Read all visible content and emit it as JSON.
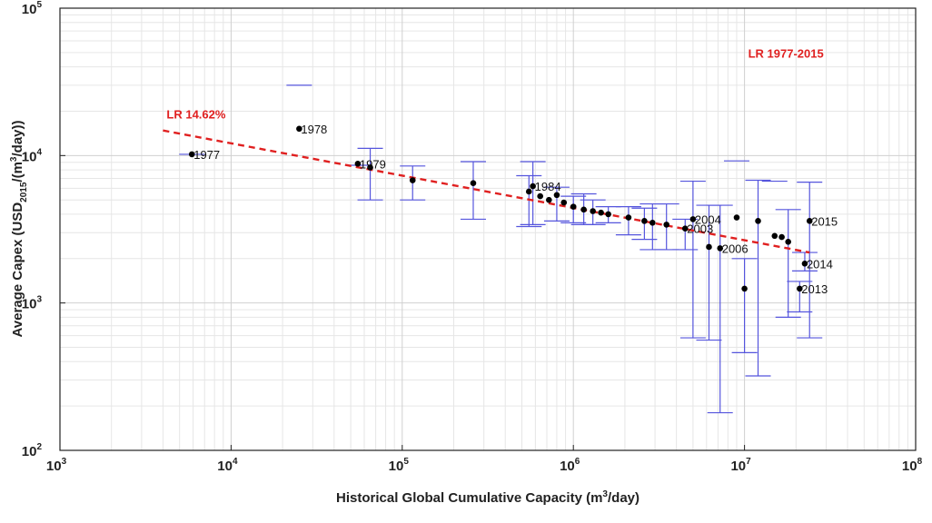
{
  "chart_data": {
    "type": "scatter",
    "title": "",
    "xlabel": {
      "pre": "Historical Global Cumulative Capacity (m",
      "sup": "3",
      "post": "/day)"
    },
    "ylabel": {
      "pre": "Average Capex (USD",
      "sub": "2015",
      "mid": "/(m",
      "sup": "3",
      "post": "/day))"
    },
    "x_scale": "log",
    "y_scale": "log",
    "xlim": [
      1000,
      100000000
    ],
    "ylim": [
      100,
      100000
    ],
    "grid": true,
    "x_ticks": [
      {
        "base": "10",
        "exp": "3"
      },
      {
        "base": "10",
        "exp": "4"
      },
      {
        "base": "10",
        "exp": "5"
      },
      {
        "base": "10",
        "exp": "6"
      },
      {
        "base": "10",
        "exp": "7"
      },
      {
        "base": "10",
        "exp": "8"
      }
    ],
    "y_ticks": [
      {
        "base": "10",
        "exp": "2"
      },
      {
        "base": "10",
        "exp": "3"
      },
      {
        "base": "10",
        "exp": "4"
      },
      {
        "base": "10",
        "exp": "5"
      }
    ],
    "colors": {
      "points": "#000000",
      "error_bars": "#5555dd",
      "fit_line": "#e02020",
      "annotation": "#e02020"
    },
    "annotations": [
      {
        "text": "LR 14.62%",
        "x": 4200,
        "y": 17800
      },
      {
        "text": "LR 1977-2015",
        "x": 10500000,
        "y": 46000
      }
    ],
    "fit_line": {
      "x": [
        4000,
        24000000
      ],
      "y": [
        14800,
        2200
      ]
    },
    "points": [
      {
        "x": 5900,
        "y": 10200,
        "label": "1977"
      },
      {
        "x": 25000,
        "y": 15200,
        "label": "1978"
      },
      {
        "x": 55000,
        "y": 8800,
        "label": "1979"
      },
      {
        "x": 65000,
        "y": 8300
      },
      {
        "x": 115000,
        "y": 6800
      },
      {
        "x": 260000,
        "y": 6500
      },
      {
        "x": 550000,
        "y": 5700
      },
      {
        "x": 580000,
        "y": 6200,
        "label": "1984"
      },
      {
        "x": 640000,
        "y": 5300
      },
      {
        "x": 720000,
        "y": 5000
      },
      {
        "x": 800000,
        "y": 5400
      },
      {
        "x": 880000,
        "y": 4800
      },
      {
        "x": 1000000,
        "y": 4500
      },
      {
        "x": 1150000,
        "y": 4300
      },
      {
        "x": 1300000,
        "y": 4200
      },
      {
        "x": 1450000,
        "y": 4100
      },
      {
        "x": 1600000,
        "y": 4000
      },
      {
        "x": 2100000,
        "y": 3800
      },
      {
        "x": 2600000,
        "y": 3600
      },
      {
        "x": 2900000,
        "y": 3500
      },
      {
        "x": 3500000,
        "y": 3400
      },
      {
        "x": 4500000,
        "y": 3200,
        "label": "2003"
      },
      {
        "x": 5000000,
        "y": 3700,
        "label": "2004"
      },
      {
        "x": 6200000,
        "y": 2400
      },
      {
        "x": 7200000,
        "y": 2350,
        "label": "2006"
      },
      {
        "x": 9000000,
        "y": 3800
      },
      {
        "x": 10000000,
        "y": 1250
      },
      {
        "x": 12000000,
        "y": 3600
      },
      {
        "x": 15000000,
        "y": 2850
      },
      {
        "x": 16500000,
        "y": 2800
      },
      {
        "x": 18000000,
        "y": 2600
      },
      {
        "x": 21000000,
        "y": 1250,
        "label": "2013"
      },
      {
        "x": 22500000,
        "y": 1850,
        "label": "2014"
      },
      {
        "x": 24000000,
        "y": 3600,
        "label": "2015"
      }
    ],
    "error_bars": [
      {
        "x": 5900,
        "low": 10200,
        "high": 10200
      },
      {
        "x": 25000,
        "low": 30000,
        "high": 30000
      },
      {
        "x": 55000,
        "low": 8600,
        "high": 8600
      },
      {
        "x": 65000,
        "low": 5000,
        "high": 11200
      },
      {
        "x": 115000,
        "low": 5000,
        "high": 8500
      },
      {
        "x": 260000,
        "low": 3700,
        "high": 9100
      },
      {
        "x": 550000,
        "low": 3300,
        "high": 7300
      },
      {
        "x": 580000,
        "low": 3400,
        "high": 9100
      },
      {
        "x": 800000,
        "low": 3600,
        "high": 6100
      },
      {
        "x": 1000000,
        "low": 3500,
        "high": 5300
      },
      {
        "x": 1150000,
        "low": 3400,
        "high": 5500
      },
      {
        "x": 1300000,
        "low": 3400,
        "high": 5000
      },
      {
        "x": 1600000,
        "low": 3500,
        "high": 4500
      },
      {
        "x": 2100000,
        "low": 2900,
        "high": 4500
      },
      {
        "x": 2600000,
        "low": 2700,
        "high": 4400
      },
      {
        "x": 2900000,
        "low": 2300,
        "high": 4700
      },
      {
        "x": 3500000,
        "low": 2300,
        "high": 4700
      },
      {
        "x": 4500000,
        "low": 2300,
        "high": 3700
      },
      {
        "x": 5000000,
        "low": 580,
        "high": 6700
      },
      {
        "x": 6200000,
        "low": 560,
        "high": 4600
      },
      {
        "x": 7200000,
        "low": 180,
        "high": 4600
      },
      {
        "x": 9000000,
        "low": 9200,
        "high": 9200
      },
      {
        "x": 10000000,
        "low": 460,
        "high": 2000
      },
      {
        "x": 12000000,
        "low": 320,
        "high": 6800
      },
      {
        "x": 15000000,
        "low": 6700,
        "high": 6700
      },
      {
        "x": 18000000,
        "low": 800,
        "high": 4300
      },
      {
        "x": 21000000,
        "low": 870,
        "high": 1400
      },
      {
        "x": 22500000,
        "low": 1650,
        "high": 2200
      },
      {
        "x": 24000000,
        "low": 580,
        "high": 6600
      }
    ]
  }
}
